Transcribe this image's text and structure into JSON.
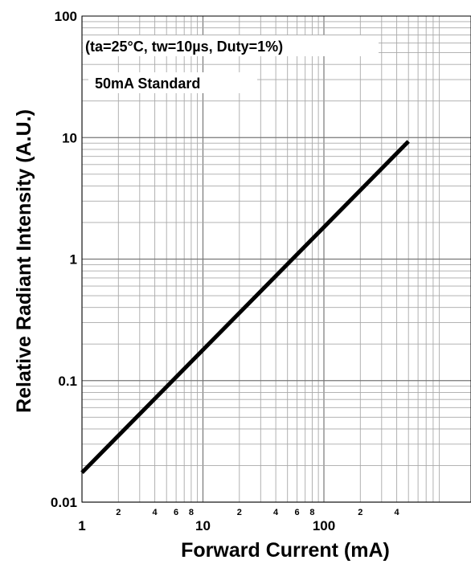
{
  "chart_data": {
    "type": "line",
    "x_scale": "log",
    "y_scale": "log",
    "xlim": [
      1,
      500
    ],
    "ylim": [
      0.01,
      100
    ],
    "xlabel": "Forward Current (mA)",
    "ylabel": "Relative Radiant Intensity (A.U.)",
    "grid": true,
    "x_ticks_major": [
      {
        "value": 1,
        "label": "1"
      },
      {
        "value": 10,
        "label": "10"
      },
      {
        "value": 100,
        "label": "100"
      }
    ],
    "x_ticks_minor": [
      {
        "value": 2,
        "label": "2"
      },
      {
        "value": 4,
        "label": "4"
      },
      {
        "value": 6,
        "label": "6"
      },
      {
        "value": 8,
        "label": "8"
      },
      {
        "value": 20,
        "label": "2"
      },
      {
        "value": 40,
        "label": "4"
      },
      {
        "value": 60,
        "label": "6"
      },
      {
        "value": 80,
        "label": "8"
      },
      {
        "value": 200,
        "label": "2"
      },
      {
        "value": 400,
        "label": "4"
      }
    ],
    "y_ticks": [
      {
        "value": 0.01,
        "label": "0.01"
      },
      {
        "value": 0.1,
        "label": "0.1"
      },
      {
        "value": 1,
        "label": "1"
      },
      {
        "value": 10,
        "label": "10"
      },
      {
        "value": 100,
        "label": "100"
      }
    ],
    "annotations": [
      "(ta=25°C, tw=10µs, Duty=1%)",
      "50mA Standard"
    ],
    "series": [
      {
        "x": [
          1,
          500
        ],
        "y": [
          0.0175,
          9.3
        ],
        "color": "#000000"
      }
    ]
  }
}
